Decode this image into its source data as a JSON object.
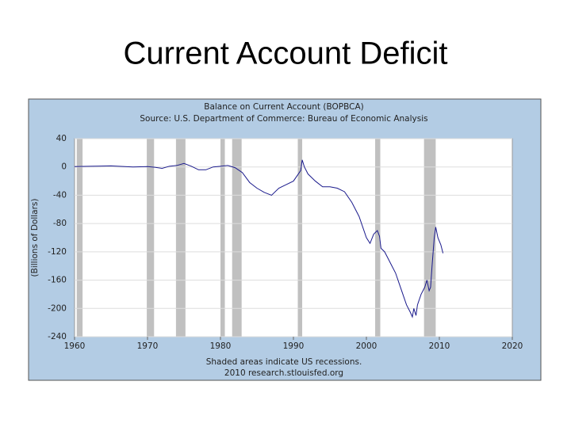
{
  "chart_data": {
    "type": "line",
    "slide_title": "Current Account Deficit",
    "title": "Balance on Current Account (BOPBCA)",
    "subtitle": "Source: U.S. Department of Commerce: Bureau of Economic Analysis",
    "y_label": "(Billions of Dollars)",
    "note": "Shaded areas indicate US recessions.",
    "credit": "2010 research.stlouisfed.org",
    "x": [
      1960,
      1962,
      1965,
      1968,
      1970,
      1971,
      1972,
      1973,
      1974,
      1975,
      1976,
      1977,
      1978,
      1979,
      1980,
      1981,
      1982,
      1983,
      1984,
      1985,
      1986,
      1987,
      1988,
      1989,
      1990,
      1991,
      1991.2,
      1991.5,
      1992,
      1993,
      1994,
      1995,
      1996,
      1997,
      1998,
      1999,
      2000,
      2000.5,
      2001,
      2001.5,
      2001.8,
      2002,
      2002.5,
      2003,
      2003.5,
      2004,
      2004.5,
      2005,
      2005.5,
      2006,
      2006.3,
      2006.5,
      2006.8,
      2007,
      2007.5,
      2008,
      2008.3,
      2008.6,
      2008.8,
      2009,
      2009.3,
      2009.5,
      2009.8,
      2010.2,
      2010.5
    ],
    "series": [
      {
        "name": "BOPBCA",
        "color": "#1a1a8c",
        "values": [
          0.5,
          1,
          1.5,
          0,
          0.5,
          -0.5,
          -2,
          1,
          2,
          5,
          1,
          -4,
          -4,
          0,
          1,
          2,
          -1,
          -8,
          -22,
          -30,
          -36,
          -40,
          -30,
          -25,
          -20,
          -5,
          10,
          0,
          -10,
          -20,
          -28,
          -28,
          -30,
          -35,
          -50,
          -70,
          -100,
          -108,
          -95,
          -90,
          -98,
          -115,
          -120,
          -130,
          -140,
          -150,
          -165,
          -180,
          -195,
          -205,
          -212,
          -200,
          -210,
          -195,
          -180,
          -170,
          -160,
          -175,
          -170,
          -140,
          -100,
          -85,
          -100,
          -110,
          -122
        ]
      }
    ],
    "recessions": [
      [
        1960.3,
        1961.1
      ],
      [
        1969.9,
        1970.9
      ],
      [
        1973.9,
        1975.2
      ],
      [
        1980.0,
        1980.6
      ],
      [
        1981.6,
        1982.9
      ],
      [
        1990.6,
        1991.2
      ],
      [
        2001.2,
        2001.9
      ],
      [
        2007.9,
        2009.5
      ]
    ],
    "recession_color": "#c0c0c0",
    "xlim": [
      1960,
      2020
    ],
    "xticks": [
      1960,
      1970,
      1980,
      1990,
      2000,
      2010,
      2020
    ],
    "ylim": [
      -240,
      40
    ],
    "yticks": [
      -240,
      -200,
      -160,
      -120,
      -80,
      -40,
      0,
      40
    ],
    "grid": true
  }
}
